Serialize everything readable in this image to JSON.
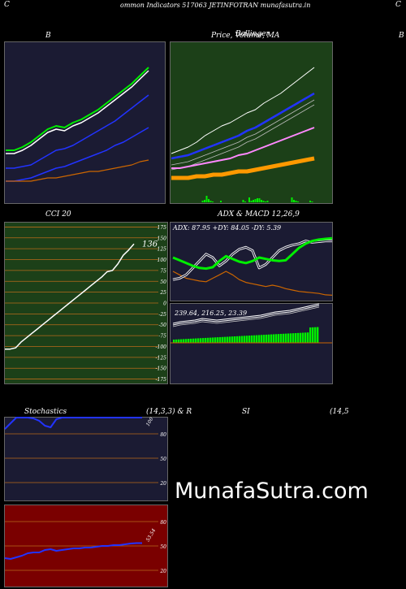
{
  "header": {
    "left_letter": "C",
    "title": "ommon  Indicators 517063 JETINFOTRAN  munafasutra.in",
    "right_letter": "C"
  },
  "titles": {
    "bb": "B",
    "price": "Price,  Volume,  MA",
    "price_overlap": "Bollinger",
    "right_edge": "B",
    "cci": "CCI 20",
    "adx": "ADX  & MACD 12,26,9",
    "stoch_left": "Stochastics",
    "stoch_mid": "(14,3,3) & R",
    "rsi_mid": "SI",
    "rsi_right": "(14,5"
  },
  "watermark": "MunafaSutra.com",
  "colors": {
    "navy": "#1b1b33",
    "green_bg": "#1c4018",
    "red_bg": "#7a0000",
    "orange": "#cc6600",
    "grid": "#b86a1a",
    "white": "#ffffff",
    "green": "#00ee00",
    "blue": "#2233ff"
  },
  "cci": {
    "value_label": "136",
    "ticks": [
      "175",
      "150",
      "125",
      "100",
      "75",
      "50",
      "25",
      "0",
      "-25",
      "-50",
      "-75",
      "-100",
      "-125",
      "-150",
      "-175"
    ],
    "ylim": [
      -187,
      187
    ],
    "series": [
      -106,
      -106,
      -103,
      -90,
      -80,
      -70,
      -60,
      -50,
      -40,
      -30,
      -20,
      -10,
      0,
      10,
      20,
      30,
      40,
      50,
      60,
      72,
      75,
      90,
      110,
      122,
      136
    ]
  },
  "adx": {
    "label": "ADX: 87.95 +DY: 84.05 -DY: 5.39",
    "ylim": [
      0,
      100
    ],
    "adx_series": [
      60,
      56,
      52,
      48,
      45,
      44,
      46,
      55,
      62,
      58,
      54,
      52,
      55,
      60,
      58,
      56,
      55,
      56,
      65,
      74,
      80,
      84,
      86,
      87,
      87.95
    ],
    "pdi_series": [
      28,
      30,
      35,
      45,
      55,
      65,
      60,
      48,
      55,
      65,
      72,
      75,
      70,
      45,
      50,
      60,
      70,
      75,
      78,
      80,
      84,
      82,
      83,
      84,
      84.05
    ],
    "mdi_series": [
      40,
      35,
      30,
      28,
      26,
      25,
      30,
      35,
      40,
      35,
      28,
      24,
      22,
      20,
      18,
      20,
      18,
      15,
      13,
      11,
      10,
      9,
      8,
      6,
      5.39
    ]
  },
  "macd": {
    "label": "239.64,  216.25,  23.39",
    "values": [
      239.64,
      216.25,
      23.39
    ]
  },
  "stoch": {
    "ticks": [
      "80",
      "50",
      "20"
    ],
    "value_label": "100",
    "ylim": [
      0,
      100
    ],
    "k_series": [
      86,
      93,
      100,
      100,
      100,
      99,
      96,
      90,
      88,
      98,
      100,
      100,
      100,
      100,
      100,
      100,
      100,
      100,
      100,
      100,
      100,
      100,
      100,
      100,
      100
    ]
  },
  "rsi": {
    "ticks": [
      "80",
      "50",
      "20"
    ],
    "value_label": "53.54",
    "ylim": [
      0,
      100
    ],
    "series": [
      35,
      34,
      36,
      38,
      41,
      42,
      42,
      45,
      46,
      44,
      45,
      46,
      47,
      47,
      48,
      48,
      49,
      50,
      50,
      51,
      51,
      52,
      53,
      53.5,
      53.54
    ]
  },
  "chart_data": [
    {
      "type": "line",
      "title": "Bollinger Bands",
      "series": [
        {
          "values": [
            31,
            31,
            33,
            36,
            40,
            44,
            46,
            45,
            48,
            50,
            53,
            56,
            60,
            64,
            68,
            72,
            77,
            82
          ]
        },
        {
          "values": [
            22,
            22,
            23,
            24,
            27,
            30,
            33,
            34,
            36,
            39,
            42,
            45,
            48,
            51,
            55,
            59,
            63,
            67
          ]
        },
        {
          "values": [
            14,
            14,
            15,
            16,
            18,
            20,
            22,
            23,
            25,
            27,
            29,
            31,
            33,
            36,
            38,
            41,
            44,
            47
          ]
        },
        {
          "values": [
            14,
            14,
            14,
            14,
            15,
            16,
            16,
            17,
            18,
            19,
            20,
            20,
            21,
            22,
            23,
            24,
            26,
            27
          ]
        }
      ]
    },
    {
      "type": "line",
      "title": "Price, Volume, MA",
      "series": [
        {
          "values": [
            31,
            33,
            35,
            38,
            42,
            45,
            48,
            50,
            53,
            56,
            58,
            62,
            65,
            68,
            72,
            76,
            80,
            84
          ]
        },
        {
          "values": [
            28,
            29,
            30,
            32,
            34,
            36,
            38,
            40,
            42,
            45,
            47,
            50,
            53,
            56,
            59,
            62,
            65,
            68
          ]
        },
        {
          "values": [
            22,
            22,
            23,
            24,
            25,
            26,
            27,
            28,
            30,
            31,
            33,
            35,
            37,
            39,
            41,
            43,
            45,
            47
          ]
        },
        {
          "values": [
            16,
            16,
            16,
            17,
            17,
            18,
            18,
            19,
            20,
            20,
            21,
            22,
            23,
            24,
            25,
            26,
            27,
            28
          ]
        }
      ]
    }
  ]
}
